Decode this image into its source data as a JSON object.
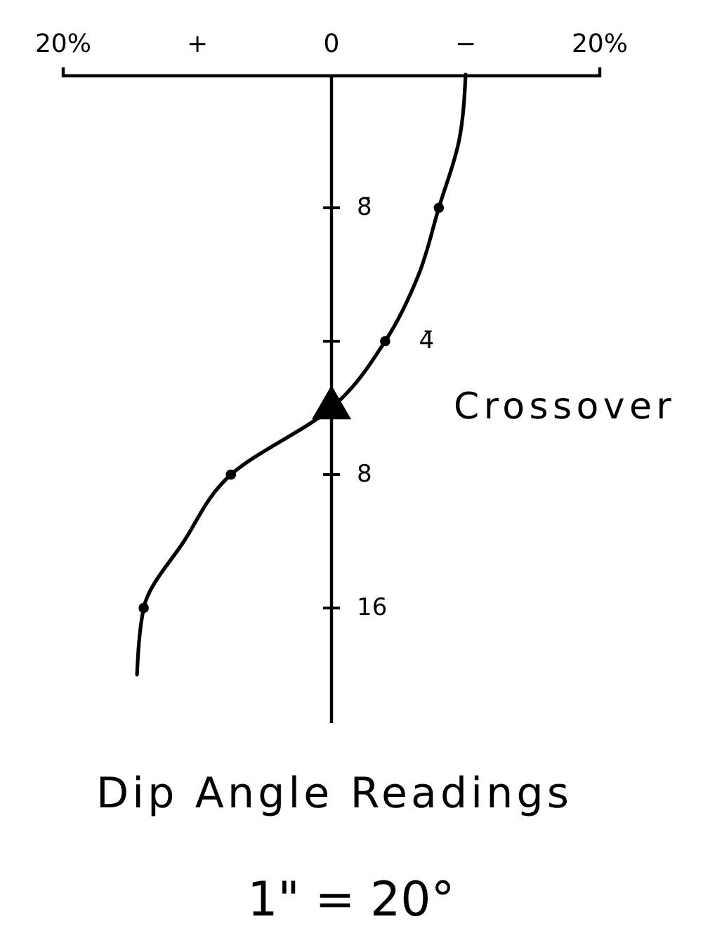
{
  "chart_data": {
    "type": "line",
    "orientation": "horizontal",
    "title": "Dip Angle Readings",
    "subtitle": "1\" = 20°",
    "categories": [
      null,
      null,
      "8̄",
      null,
      "4̄",
      null,
      "8",
      null,
      "16",
      null
    ],
    "xlim": [
      20,
      -20
    ],
    "xticks": [
      {
        "value": 20,
        "label": "20%"
      },
      {
        "value": 10,
        "label": "+"
      },
      0,
      {
        "value": -10,
        "label": "−"
      },
      {
        "value": -20,
        "label": "20%"
      }
    ],
    "series": [
      {
        "color": "#000000",
        "marker": "none",
        "values": [
          -10,
          -9.5,
          -8,
          -6.5,
          -4,
          0,
          7.5,
          11,
          14,
          14.5
        ]
      },
      {
        "type": "scatter",
        "color": "#000000",
        "marker": "circle",
        "values": [
          null,
          null,
          -8,
          null,
          -4,
          null,
          7.5,
          null,
          14,
          null
        ]
      },
      {
        "type": "scatter",
        "color": "#000000",
        "marker": "triangle",
        "values": [
          null,
          null,
          null,
          null,
          null,
          0,
          null,
          null,
          null,
          null
        ]
      }
    ],
    "annotations": [
      "Crossover"
    ]
  }
}
